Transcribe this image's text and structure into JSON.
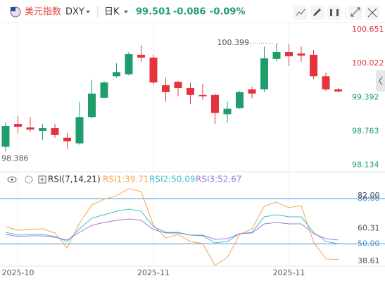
{
  "header": {
    "name": "美元指数",
    "symbol": "DXY",
    "period": "日K",
    "price": "99.501",
    "change": "-0.086",
    "change_pct": "-0.09%"
  },
  "chart_data": [
    {
      "type": "candlestick",
      "categories": [
        null,
        "2025-10",
        null,
        null,
        null,
        null,
        null,
        null,
        null,
        null,
        null,
        null,
        "2025-11",
        null,
        null,
        null,
        null,
        null,
        null,
        null,
        null,
        null,
        null,
        "2025-11",
        null,
        null,
        null,
        null
      ],
      "open": [
        98.476,
        98.899,
        98.835,
        98.771,
        98.822,
        98.643,
        98.54,
        99.027,
        99.386,
        99.784,
        99.822,
        100.181,
        100.13,
        99.617,
        99.681,
        99.566,
        99.438,
        99.438,
        99.079,
        99.194,
        99.54,
        99.54,
        100.104,
        100.232,
        100.207,
        100.181,
        99.784,
        99.54
      ],
      "high": [
        98.925,
        99.053,
        99.027,
        98.899,
        98.899,
        98.732,
        99.309,
        99.72,
        99.694,
        100.027,
        100.232,
        100.361,
        100.181,
        99.758,
        99.694,
        99.668,
        99.643,
        99.463,
        99.309,
        99.514,
        99.591,
        100.335,
        100.399,
        100.386,
        100.335,
        100.271,
        99.848,
        99.566
      ],
      "low": [
        98.386,
        98.732,
        98.758,
        98.604,
        98.643,
        98.438,
        98.514,
        99.002,
        99.373,
        99.758,
        99.796,
        100.053,
        99.63,
        99.309,
        99.412,
        99.271,
        99.348,
        98.899,
        98.925,
        99.181,
        99.373,
        99.489,
        100.053,
        99.976,
        100.053,
        99.732,
        99.514,
        99.489
      ],
      "close": [
        98.861,
        98.848,
        98.796,
        98.822,
        98.694,
        98.579,
        99.027,
        99.463,
        99.668,
        99.861,
        100.194,
        100.13,
        99.668,
        99.489,
        99.566,
        99.438,
        99.412,
        99.104,
        99.181,
        99.489,
        99.463,
        100.117,
        100.232,
        100.155,
        100.168,
        99.784,
        99.54,
        99.501
      ],
      "up_color": "#1f9e6c",
      "down_color": "#e5333b",
      "max_label": "100.399",
      "min_label": "98.386",
      "ylim": [
        98.0,
        100.78
      ],
      "yticks": [
        98.134,
        98.763,
        99.392,
        100.022,
        100.651
      ],
      "grid": false
    },
    {
      "type": "line",
      "title": "RSI(7,14,21)",
      "series": [
        {
          "name": "RSI1:39.71",
          "color": "#f5a449",
          "values": [
            61.47,
            59.13,
            59.6,
            60.07,
            57.27,
            47.47,
            63.8,
            75.93,
            79.67,
            82.0,
            86.67,
            84.8,
            62.4,
            54.0,
            56.33,
            51.67,
            50.27,
            35.8,
            40.94,
            56.33,
            60.07,
            75.0,
            77.8,
            74.07,
            75.47,
            51.2,
            40.0,
            39.71
          ]
        },
        {
          "name": "RSI2:50.09",
          "color": "#3cbfd2",
          "values": [
            57.73,
            55.87,
            56.34,
            56.34,
            54.93,
            51.67,
            60.07,
            67.07,
            69.4,
            71.73,
            73.13,
            71.73,
            61.47,
            57.73,
            57.73,
            55.87,
            55.4,
            50.74,
            51.67,
            56.8,
            57.73,
            68.0,
            69.4,
            68.0,
            68.0,
            57.73,
            51.67,
            50.09
          ]
        },
        {
          "name": "RSI3:52.67",
          "color": "#9a7fd1",
          "values": [
            56.34,
            54.93,
            55.4,
            55.4,
            54.47,
            52.6,
            57.73,
            62.4,
            64.27,
            65.67,
            66.6,
            65.67,
            59.6,
            57.27,
            57.27,
            55.87,
            55.87,
            53.07,
            53.53,
            56.8,
            57.27,
            63.33,
            64.27,
            63.33,
            63.33,
            56.8,
            53.53,
            52.67
          ]
        }
      ],
      "ylim": [
        35.3,
        88.1
      ],
      "yticks": [
        {
          "value": 38.61,
          "label": "38.61"
        },
        {
          "value": 60.31,
          "label": "60.31"
        },
        {
          "value": 82,
          "label": "82.00"
        }
      ],
      "hlines": [
        {
          "value": 80,
          "label": "80.00"
        },
        {
          "value": 50,
          "label": "50.00"
        }
      ],
      "hline_color": "#4a8fd6",
      "grid": false
    }
  ]
}
